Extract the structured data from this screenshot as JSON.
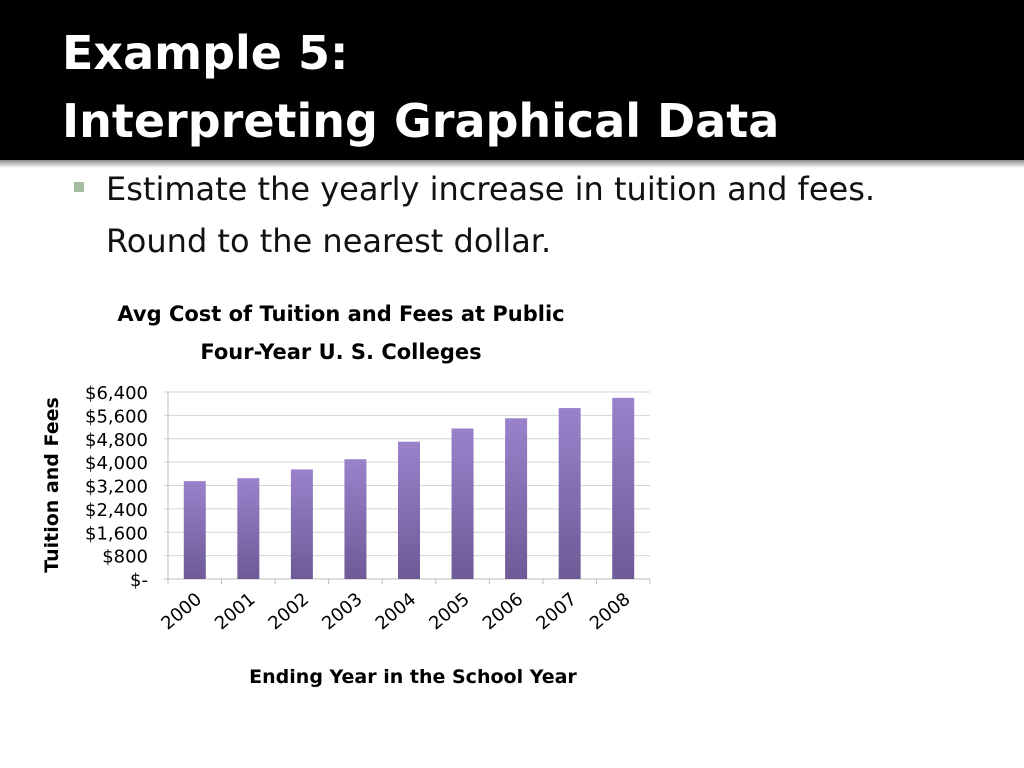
{
  "slide": {
    "title_line1": "Example 5:",
    "title_line2": "Interpreting Graphical Data",
    "bullet_line1": "Estimate the yearly increase in tuition and fees.",
    "bullet_line2": "Round to the nearest dollar."
  },
  "colors": {
    "title_background": "#000000",
    "bullet_marker": "#a6bca0",
    "bar_top": "#9a82cc",
    "bar_bottom": "#6e5a96"
  },
  "chart_data": {
    "type": "bar",
    "title": "Avg Cost of Tuition and Fees at Public Four-Year U. S. Colleges",
    "title_lines": [
      "Avg Cost of Tuition and Fees at Public",
      "Four-Year U. S. Colleges"
    ],
    "xlabel": "Ending Year in the School Year",
    "ylabel": "Tuition and Fees",
    "categories": [
      "2000",
      "2001",
      "2002",
      "2003",
      "2004",
      "2005",
      "2006",
      "2007",
      "2008"
    ],
    "values": [
      3350,
      3450,
      3750,
      4100,
      4700,
      5150,
      5500,
      5850,
      6200
    ],
    "ylim": [
      0,
      6400
    ],
    "yticks": [
      0,
      800,
      1600,
      2400,
      3200,
      4000,
      4800,
      5600,
      6400
    ],
    "ytick_labels": [
      "$-",
      "$800",
      "$1,600",
      "$2,400",
      "$3,200",
      "$4,000",
      "$4,800",
      "$5,600",
      "$6,400"
    ],
    "grid": true,
    "legend": "none"
  }
}
